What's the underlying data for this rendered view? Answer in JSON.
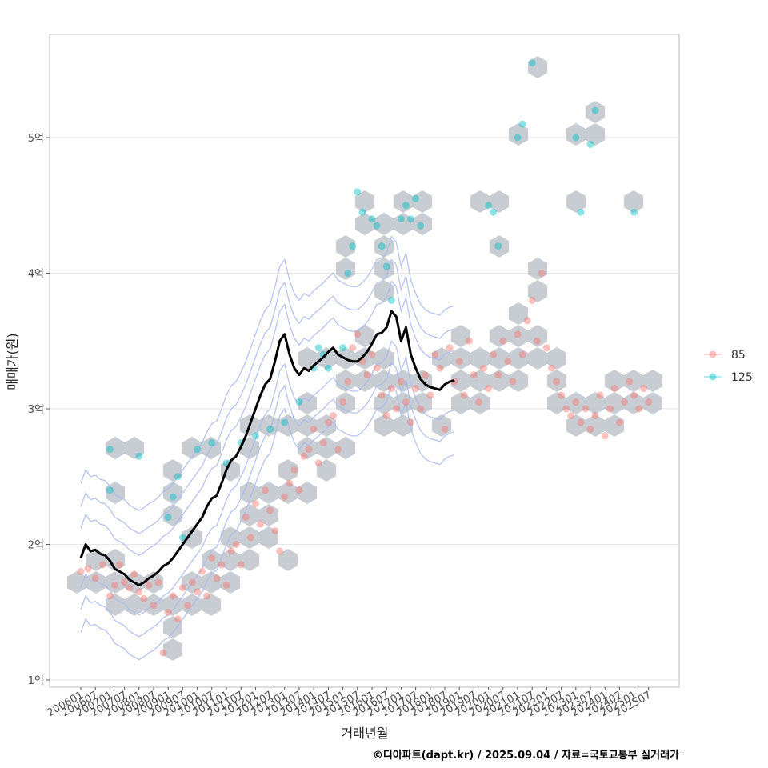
{
  "chart_data": {
    "type": "scatter",
    "title": "",
    "xlabel": "거래년월",
    "ylabel": "매매가(원)",
    "caption": "©디아파트(dapt.kr) / 2025.09.04 / 자료=국토교통부 실거래가",
    "y_scale": "억 (100 million KRW)",
    "ylim": [
      0.95,
      5.8
    ],
    "y_ticks": [
      {
        "value": 1,
        "label": "1억"
      },
      {
        "value": 2,
        "label": "2억"
      },
      {
        "value": 3,
        "label": "3억"
      },
      {
        "value": 4,
        "label": "4억"
      },
      {
        "value": 5,
        "label": "5억"
      }
    ],
    "x_ticks": [
      "200601",
      "200607",
      "200701",
      "200707",
      "200801",
      "200807",
      "200901",
      "200907",
      "201001",
      "201007",
      "201101",
      "201107",
      "201201",
      "201207",
      "201301",
      "201307",
      "201401",
      "201407",
      "201501",
      "201507",
      "201601",
      "201607",
      "201701",
      "201707",
      "201801",
      "201807",
      "201901",
      "201907",
      "202001",
      "202007",
      "202101",
      "202107",
      "202201",
      "202207",
      "202301",
      "202307",
      "202401",
      "202407",
      "202501",
      "202507"
    ],
    "grid": true,
    "legend": {
      "position": "right",
      "title": ""
    },
    "series": [
      {
        "name": "85",
        "color": "#F8766D",
        "points": [
          [
            "200601",
            1.8
          ],
          [
            "200604",
            1.82
          ],
          [
            "200607",
            1.75
          ],
          [
            "200610",
            1.85
          ],
          [
            "200701",
            1.62
          ],
          [
            "200703",
            1.7
          ],
          [
            "200705",
            1.85
          ],
          [
            "200707",
            1.72
          ],
          [
            "200709",
            1.68
          ],
          [
            "200711",
            1.78
          ],
          [
            "200801",
            1.65
          ],
          [
            "200803",
            1.6
          ],
          [
            "200805",
            1.7
          ],
          [
            "200807",
            1.55
          ],
          [
            "200809",
            1.72
          ],
          [
            "200811",
            1.2
          ],
          [
            "200901",
            1.5
          ],
          [
            "200903",
            1.62
          ],
          [
            "200905",
            1.45
          ],
          [
            "200907",
            1.68
          ],
          [
            "200909",
            1.55
          ],
          [
            "200911",
            1.72
          ],
          [
            "201001",
            1.65
          ],
          [
            "201003",
            1.8
          ],
          [
            "201005",
            1.62
          ],
          [
            "201007",
            1.9
          ],
          [
            "201009",
            1.75
          ],
          [
            "201011",
            1.85
          ],
          [
            "201101",
            1.7
          ],
          [
            "201103",
            1.95
          ],
          [
            "201105",
            2.0
          ],
          [
            "201107",
            1.85
          ],
          [
            "201109",
            2.2
          ],
          [
            "201111",
            2.05
          ],
          [
            "201201",
            2.3
          ],
          [
            "201203",
            2.15
          ],
          [
            "201205",
            2.4
          ],
          [
            "201207",
            2.25
          ],
          [
            "201209",
            2.1
          ],
          [
            "201211",
            1.95
          ],
          [
            "201301",
            2.35
          ],
          [
            "201303",
            2.45
          ],
          [
            "201305",
            2.55
          ],
          [
            "201307",
            2.4
          ],
          [
            "201309",
            2.65
          ],
          [
            "201311",
            2.7
          ],
          [
            "201401",
            2.85
          ],
          [
            "201403",
            2.6
          ],
          [
            "201405",
            2.75
          ],
          [
            "201407",
            2.9
          ],
          [
            "201409",
            2.95
          ],
          [
            "201411",
            2.7
          ],
          [
            "201501",
            3.05
          ],
          [
            "201503",
            3.2
          ],
          [
            "201505",
            3.45
          ],
          [
            "201507",
            3.55
          ],
          [
            "201509",
            3.35
          ],
          [
            "201511",
            3.25
          ],
          [
            "201601",
            3.4
          ],
          [
            "201603",
            3.3
          ],
          [
            "201605",
            3.1
          ],
          [
            "201607",
            2.95
          ],
          [
            "201609",
            3.15
          ],
          [
            "201611",
            3.0
          ],
          [
            "201701",
            3.2
          ],
          [
            "201703",
            3.05
          ],
          [
            "201705",
            2.9
          ],
          [
            "201707",
            3.15
          ],
          [
            "201709",
            3.0
          ],
          [
            "201711",
            3.25
          ],
          [
            "201801",
            3.1
          ],
          [
            "201803",
            3.4
          ],
          [
            "201805",
            3.3
          ],
          [
            "201807",
            2.85
          ],
          [
            "201809",
            3.45
          ],
          [
            "201811",
            3.2
          ],
          [
            "201901",
            3.35
          ],
          [
            "201903",
            3.1
          ],
          [
            "201905",
            3.5
          ],
          [
            "201907",
            3.25
          ],
          [
            "201909",
            3.05
          ],
          [
            "201911",
            3.3
          ],
          [
            "202001",
            3.15
          ],
          [
            "202003",
            3.4
          ],
          [
            "202005",
            3.25
          ],
          [
            "202007",
            3.5
          ],
          [
            "202009",
            3.35
          ],
          [
            "202011",
            3.2
          ],
          [
            "202101",
            3.55
          ],
          [
            "202103",
            3.4
          ],
          [
            "202105",
            3.65
          ],
          [
            "202107",
            3.8
          ],
          [
            "202109",
            3.5
          ],
          [
            "202111",
            4.0
          ],
          [
            "202201",
            3.45
          ],
          [
            "202203",
            3.3
          ],
          [
            "202205",
            3.2
          ],
          [
            "202207",
            3.1
          ],
          [
            "202209",
            3.0
          ],
          [
            "202211",
            2.95
          ],
          [
            "202301",
            3.05
          ],
          [
            "202303",
            2.9
          ],
          [
            "202305",
            3.0
          ],
          [
            "202307",
            2.85
          ],
          [
            "202309",
            2.95
          ],
          [
            "202311",
            3.1
          ],
          [
            "202401",
            2.8
          ],
          [
            "202403",
            3.0
          ],
          [
            "202405",
            3.15
          ],
          [
            "202407",
            2.9
          ],
          [
            "202409",
            3.05
          ],
          [
            "202411",
            3.2
          ],
          [
            "202501",
            3.1
          ],
          [
            "202503",
            3.0
          ],
          [
            "202505",
            3.15
          ],
          [
            "202507",
            3.05
          ]
        ]
      },
      {
        "name": "125",
        "color": "#00BFC4",
        "points": [
          [
            "200701",
            2.7
          ],
          [
            "200701",
            2.4
          ],
          [
            "200801",
            2.65
          ],
          [
            "200901",
            2.2
          ],
          [
            "200903",
            2.35
          ],
          [
            "200905",
            2.5
          ],
          [
            "200907",
            2.05
          ],
          [
            "201001",
            2.7
          ],
          [
            "201007",
            2.75
          ],
          [
            "201101",
            2.6
          ],
          [
            "201107",
            2.75
          ],
          [
            "201201",
            2.8
          ],
          [
            "201207",
            2.85
          ],
          [
            "201301",
            2.9
          ],
          [
            "201307",
            3.05
          ],
          [
            "201401",
            3.3
          ],
          [
            "201403",
            3.45
          ],
          [
            "201405",
            3.4
          ],
          [
            "201407",
            3.3
          ],
          [
            "201501",
            3.45
          ],
          [
            "201503",
            4.0
          ],
          [
            "201505",
            4.2
          ],
          [
            "201507",
            4.6
          ],
          [
            "201509",
            4.45
          ],
          [
            "201601",
            4.4
          ],
          [
            "201603",
            4.35
          ],
          [
            "201605",
            4.2
          ],
          [
            "201607",
            4.05
          ],
          [
            "201609",
            3.8
          ],
          [
            "201701",
            4.4
          ],
          [
            "201703",
            4.5
          ],
          [
            "201705",
            4.4
          ],
          [
            "201707",
            4.55
          ],
          [
            "201709",
            4.35
          ],
          [
            "202001",
            4.5
          ],
          [
            "202003",
            4.45
          ],
          [
            "202005",
            4.2
          ],
          [
            "202101",
            5.0
          ],
          [
            "202103",
            5.1
          ],
          [
            "202107",
            5.55
          ],
          [
            "202301",
            5.0
          ],
          [
            "202303",
            4.45
          ],
          [
            "202307",
            4.95
          ],
          [
            "202309",
            5.2
          ],
          [
            "202501",
            4.45
          ]
        ]
      }
    ],
    "trend_line": {
      "color": "#000000",
      "points": [
        [
          "200601",
          1.9
        ],
        [
          "200603",
          2.0
        ],
        [
          "200605",
          1.95
        ],
        [
          "200607",
          1.96
        ],
        [
          "200609",
          1.93
        ],
        [
          "200611",
          1.92
        ],
        [
          "200701",
          1.88
        ],
        [
          "200703",
          1.82
        ],
        [
          "200705",
          1.8
        ],
        [
          "200707",
          1.78
        ],
        [
          "200709",
          1.74
        ],
        [
          "200711",
          1.72
        ],
        [
          "200801",
          1.7
        ],
        [
          "200803",
          1.72
        ],
        [
          "200805",
          1.75
        ],
        [
          "200807",
          1.77
        ],
        [
          "200809",
          1.8
        ],
        [
          "200811",
          1.84
        ],
        [
          "200901",
          1.86
        ],
        [
          "200903",
          1.9
        ],
        [
          "200905",
          1.95
        ],
        [
          "200907",
          2.0
        ],
        [
          "200909",
          2.05
        ],
        [
          "200911",
          2.1
        ],
        [
          "201001",
          2.15
        ],
        [
          "201003",
          2.2
        ],
        [
          "201005",
          2.28
        ],
        [
          "201007",
          2.34
        ],
        [
          "201009",
          2.36
        ],
        [
          "201011",
          2.45
        ],
        [
          "201101",
          2.55
        ],
        [
          "201103",
          2.62
        ],
        [
          "201105",
          2.65
        ],
        [
          "201107",
          2.72
        ],
        [
          "201109",
          2.8
        ],
        [
          "201111",
          2.9
        ],
        [
          "201201",
          3.0
        ],
        [
          "201203",
          3.1
        ],
        [
          "201205",
          3.18
        ],
        [
          "201207",
          3.22
        ],
        [
          "201209",
          3.35
        ],
        [
          "201211",
          3.5
        ],
        [
          "201301",
          3.55
        ],
        [
          "201303",
          3.4
        ],
        [
          "201305",
          3.3
        ],
        [
          "201307",
          3.25
        ],
        [
          "201309",
          3.3
        ],
        [
          "201311",
          3.28
        ],
        [
          "201401",
          3.32
        ],
        [
          "201403",
          3.35
        ],
        [
          "201405",
          3.38
        ],
        [
          "201407",
          3.42
        ],
        [
          "201409",
          3.45
        ],
        [
          "201411",
          3.4
        ],
        [
          "201501",
          3.38
        ],
        [
          "201503",
          3.36
        ],
        [
          "201505",
          3.35
        ],
        [
          "201507",
          3.35
        ],
        [
          "201509",
          3.38
        ],
        [
          "201511",
          3.42
        ],
        [
          "201601",
          3.48
        ],
        [
          "201603",
          3.55
        ],
        [
          "201605",
          3.56
        ],
        [
          "201607",
          3.6
        ],
        [
          "201609",
          3.72
        ],
        [
          "201611",
          3.68
        ],
        [
          "201701",
          3.5
        ],
        [
          "201703",
          3.6
        ],
        [
          "201705",
          3.4
        ],
        [
          "201707",
          3.3
        ],
        [
          "201709",
          3.22
        ],
        [
          "201711",
          3.18
        ],
        [
          "201801",
          3.16
        ],
        [
          "201803",
          3.15
        ],
        [
          "201805",
          3.14
        ],
        [
          "201807",
          3.18
        ],
        [
          "201809",
          3.2
        ],
        [
          "201811",
          3.21
        ]
      ]
    }
  }
}
